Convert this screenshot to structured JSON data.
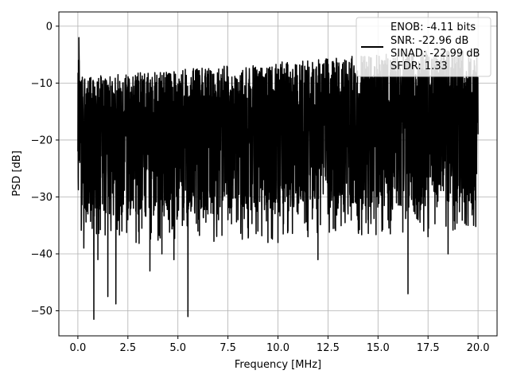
{
  "chart_data": {
    "type": "line",
    "title": "",
    "xlabel": "Frequency [MHz]",
    "ylabel": "PSD [dB]",
    "xlim": [
      -0.95,
      20.95
    ],
    "ylim": [
      -54.4,
      2.5
    ],
    "xticks": [
      "0.0",
      "2.5",
      "5.0",
      "7.5",
      "10.0",
      "12.5",
      "15.0",
      "17.5",
      "20.0"
    ],
    "yticks": [
      "0",
      "−10",
      "−20",
      "−30",
      "−40",
      "−50"
    ],
    "xtick_values": [
      0,
      2.5,
      5,
      7.5,
      10,
      12.5,
      15,
      17.5,
      20
    ],
    "ytick_values": [
      0,
      -10,
      -20,
      -30,
      -40,
      -50
    ],
    "grid": true,
    "legend_position": "top-right",
    "series": [
      {
        "color": "#000000",
        "x": [
          0,
          0.05,
          0.12,
          0.3,
          0.5,
          0.8,
          1.0,
          1.5,
          1.9,
          2.2,
          2.5,
          3.0,
          3.6,
          4.2,
          4.8,
          5.2,
          5.5,
          6.0,
          6.5,
          7.0,
          7.5,
          8.0,
          8.5,
          9.0,
          9.5,
          10.0,
          10.5,
          11.0,
          11.5,
          12.0,
          12.5,
          13.0,
          13.5,
          14.0,
          14.5,
          15.0,
          15.5,
          16.0,
          16.5,
          17.0,
          17.5,
          18.0,
          18.5,
          19.0,
          19.5,
          20.0
        ],
        "y": [
          -22,
          -2,
          -20,
          -39,
          -33,
          -51.5,
          -41,
          -47.5,
          -48.8,
          -36,
          -34,
          -33,
          -43,
          -40,
          -41,
          -28,
          -51,
          -36,
          -33,
          -33,
          -34,
          -34,
          -30,
          -36,
          -38,
          -38,
          -36,
          -33,
          -37,
          -41,
          -33,
          -32,
          -33,
          -34,
          -34,
          -31,
          -34,
          -29,
          -47,
          -34,
          -37,
          -22,
          -40,
          -28,
          -35,
          -19
        ]
      }
    ],
    "legend": {
      "lines": [
        "ENOB: -4.11 bits",
        "SNR: -22.96 dB",
        "SINAD: -22.99 dB",
        "SFDR: 1.33"
      ]
    }
  }
}
